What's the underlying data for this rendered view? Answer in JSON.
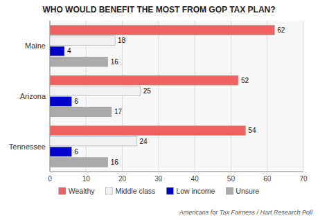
{
  "chart_data": {
    "type": "bar",
    "orientation": "horizontal",
    "title": "WHO WOULD BENEFIT THE MOST FROM GOP TAX PLAN?",
    "categories": [
      "Maine",
      "Arizona",
      "Tennessee"
    ],
    "series": [
      {
        "name": "Wealthy",
        "color": "#f06060",
        "values": [
          62,
          52,
          54
        ]
      },
      {
        "name": "Middle class",
        "color": "#f0f0f0",
        "values": [
          18,
          25,
          24
        ]
      },
      {
        "name": "Low income",
        "color": "#0000cc",
        "values": [
          4,
          6,
          6
        ]
      },
      {
        "name": "Unsure",
        "color": "#aaaaaa",
        "values": [
          16,
          17,
          16
        ]
      }
    ],
    "xlim": [
      0,
      70
    ],
    "xticks": [
      0,
      10,
      20,
      30,
      40,
      50,
      60,
      70
    ],
    "grid": true,
    "data_labels": true,
    "legend": "bottom",
    "annotations": [
      "Americans for Tax Fairness / Hart Research Poll"
    ]
  }
}
